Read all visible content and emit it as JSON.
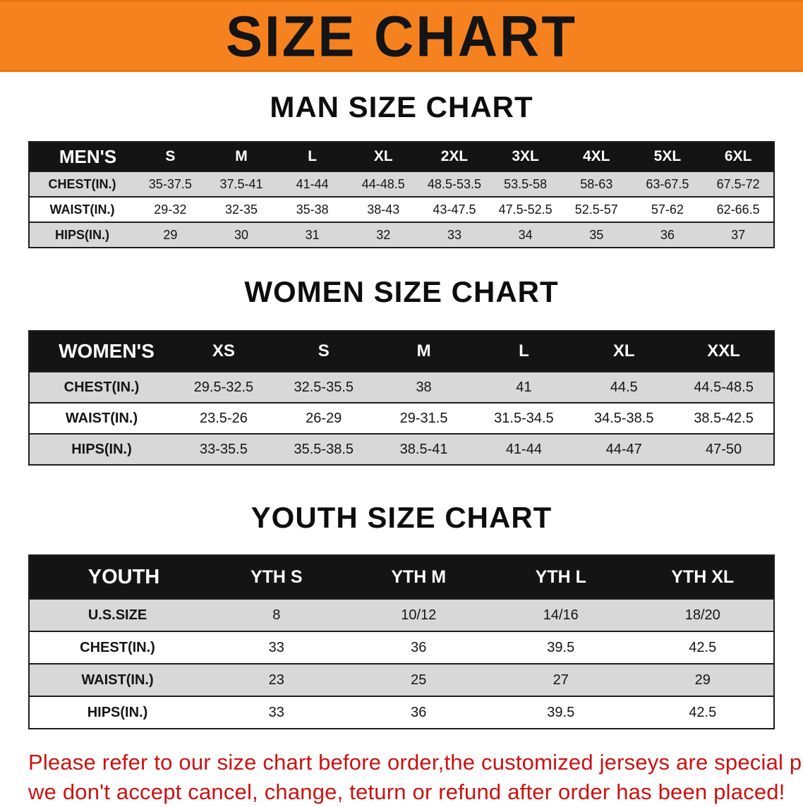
{
  "banner": {
    "title": "SIZE CHART",
    "background_color": "#f6821f"
  },
  "sections": [
    {
      "heading": "MAN SIZE CHART",
      "table": {
        "header": [
          "MEN'S",
          "S",
          "M",
          "L",
          "XL",
          "2XL",
          "3XL",
          "4XL",
          "5XL",
          "6XL"
        ],
        "rows": [
          [
            "CHEST(IN.)",
            "35-37.5",
            "37.5-41",
            "41-44",
            "44-48.5",
            "48.5-53.5",
            "53.5-58",
            "58-63",
            "63-67.5",
            "67.5-72"
          ],
          [
            "WAIST(IN.)",
            "29-32",
            "32-35",
            "35-38",
            "38-43",
            "43-47.5",
            "47.5-52.5",
            "52.5-57",
            "57-62",
            "62-66.5"
          ],
          [
            "HIPS(IN.)",
            "29",
            "30",
            "31",
            "32",
            "33",
            "34",
            "35",
            "36",
            "37"
          ]
        ]
      }
    },
    {
      "heading": "WOMEN SIZE CHART",
      "table": {
        "header": [
          "WOMEN'S",
          "XS",
          "S",
          "M",
          "L",
          "XL",
          "XXL"
        ],
        "rows": [
          [
            "CHEST(IN.)",
            "29.5-32.5",
            "32.5-35.5",
            "38",
            "41",
            "44.5",
            "44.5-48.5"
          ],
          [
            "WAIST(IN.)",
            "23.5-26",
            "26-29",
            "29-31.5",
            "31.5-34.5",
            "34.5-38.5",
            "38.5-42.5"
          ],
          [
            "HIPS(IN.)",
            "33-35.5",
            "35.5-38.5",
            "38.5-41",
            "41-44",
            "44-47",
            "47-50"
          ]
        ]
      }
    },
    {
      "heading": "YOUTH SIZE CHART",
      "table": {
        "header": [
          "YOUTH",
          "YTH S",
          "YTH M",
          "YTH L",
          "YTH XL"
        ],
        "rows": [
          [
            "U.S.SIZE",
            "8",
            "10/12",
            "14/16",
            "18/20"
          ],
          [
            "CHEST(IN.)",
            "33",
            "36",
            "39.5",
            "42.5"
          ],
          [
            "WAIST(IN.)",
            "23",
            "25",
            "27",
            "29"
          ],
          [
            "HIPS(IN.)",
            "33",
            "36",
            "39.5",
            "42.5"
          ]
        ]
      }
    }
  ],
  "disclaimer": {
    "color": "#cc1111",
    "line1": "Please refer to our size chart before order,the customized jerseys are special products,",
    "line2": "we don't accept cancel, change, teturn or refund after order has been placed!"
  }
}
